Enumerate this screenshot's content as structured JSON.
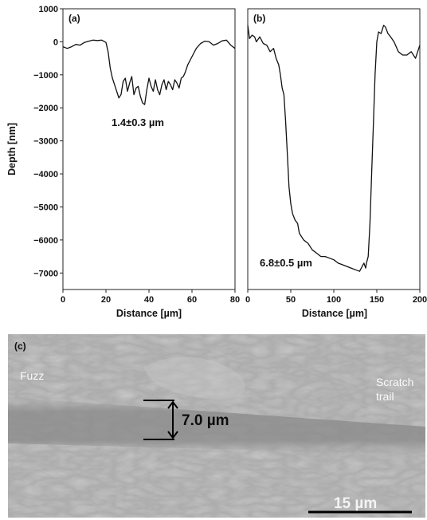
{
  "chart_data": [
    {
      "type": "line",
      "panel_label": "(a)",
      "xlabel": "Distance [µm]",
      "ylabel": "Depth [nm]",
      "xlim": [
        0,
        80
      ],
      "ylim": [
        -7500,
        1000
      ],
      "xticks": [
        0,
        20,
        40,
        60,
        80
      ],
      "yticks": [
        1000,
        0,
        -1000,
        -2000,
        -3000,
        -4000,
        -5000,
        -6000,
        -7000
      ],
      "annotation": "1.4±0.3 µm",
      "series": [
        {
          "x": [
            0,
            2,
            4,
            6,
            8,
            10,
            12,
            14,
            16,
            18,
            20,
            21,
            22,
            23,
            24,
            25,
            26,
            27,
            28,
            29,
            30,
            31,
            32,
            33,
            34,
            35,
            36,
            37,
            38,
            39,
            40,
            41,
            42,
            43,
            44,
            45,
            46,
            47,
            48,
            49,
            50,
            51,
            52,
            53,
            54,
            55,
            56,
            57,
            58,
            60,
            62,
            64,
            66,
            68,
            70,
            72,
            74,
            76,
            78,
            80
          ],
          "y": [
            -150,
            -200,
            -150,
            -80,
            -100,
            -20,
            20,
            50,
            40,
            50,
            -20,
            -300,
            -800,
            -1100,
            -1300,
            -1500,
            -1700,
            -1600,
            -1200,
            -1100,
            -1500,
            -1250,
            -1050,
            -1600,
            -1400,
            -1350,
            -1650,
            -1850,
            -1900,
            -1450,
            -1100,
            -1350,
            -1500,
            -1150,
            -1450,
            -1600,
            -1300,
            -1150,
            -1450,
            -1200,
            -1300,
            -1450,
            -1150,
            -1250,
            -1400,
            -1100,
            -1050,
            -900,
            -700,
            -450,
            -200,
            -50,
            20,
            0,
            -100,
            -50,
            30,
            50,
            -100,
            -200
          ]
        }
      ]
    },
    {
      "type": "line",
      "panel_label": "(b)",
      "xlabel": "Distance [µm]",
      "xlim": [
        0,
        200
      ],
      "ylim": [
        -7500,
        1000
      ],
      "xticks": [
        0,
        50,
        100,
        150,
        200
      ],
      "annotation": "6.8±0.5 µm",
      "series": [
        {
          "x": [
            0,
            2,
            5,
            8,
            10,
            14,
            18,
            22,
            26,
            30,
            33,
            36,
            38,
            40,
            42,
            44,
            46,
            48,
            50,
            52,
            55,
            58,
            60,
            65,
            70,
            75,
            80,
            85,
            90,
            95,
            100,
            105,
            110,
            115,
            120,
            125,
            130,
            133,
            135,
            137,
            138,
            140,
            142,
            144,
            146,
            148,
            150,
            152,
            155,
            158,
            160,
            163,
            166,
            170,
            175,
            180,
            185,
            190,
            195,
            200
          ],
          "y": [
            500,
            100,
            200,
            150,
            0,
            150,
            -50,
            -100,
            -300,
            -200,
            -500,
            -700,
            -1000,
            -1400,
            -1600,
            -2400,
            -3400,
            -4400,
            -4900,
            -5200,
            -5400,
            -5500,
            -5800,
            -6000,
            -6100,
            -6300,
            -6400,
            -6500,
            -6500,
            -6550,
            -6600,
            -6700,
            -6750,
            -6800,
            -6850,
            -6900,
            -6950,
            -6800,
            -6700,
            -6850,
            -6700,
            -6500,
            -5500,
            -4000,
            -2500,
            -1000,
            0,
            300,
            250,
            500,
            450,
            250,
            150,
            0,
            -300,
            -400,
            -400,
            -300,
            -500,
            -100
          ]
        }
      ]
    }
  ],
  "micrograph": {
    "panel_label": "(c)",
    "label_fuzz": "Fuzz",
    "label_scratch": "Scratch",
    "label_trail": "trail",
    "width_value": "7.0 µm",
    "scale_bar": "15 µm"
  },
  "colors": {
    "line": "#111111",
    "sem_base": "#a9a9a9",
    "trail": "#8f8f8f"
  }
}
